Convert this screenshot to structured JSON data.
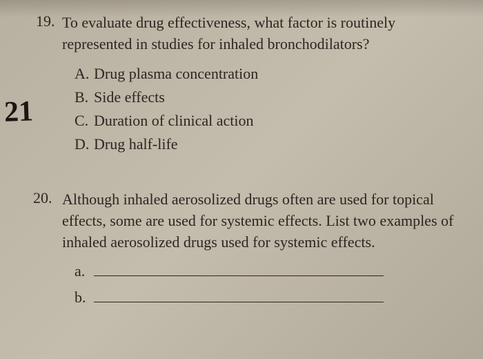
{
  "background_color": "#bcb4a4",
  "text_color": "#2a2622",
  "font_family": "Georgia, Times New Roman, serif",
  "base_fontsize": 22,
  "handwritten_annotation": {
    "text": "21",
    "color": "#1a1612",
    "fontsize": 42,
    "font_family": "Comic Sans MS, cursive"
  },
  "questions": [
    {
      "number": "19.",
      "text": "To evaluate drug effectiveness, what factor is routinely represented in studies for inhaled bronchodilators?",
      "options": [
        {
          "letter": "A.",
          "text": "Drug plasma concentration"
        },
        {
          "letter": "B.",
          "text": "Side effects"
        },
        {
          "letter": "C.",
          "text": "Duration of clinical action"
        },
        {
          "letter": "D.",
          "text": "Drug half-life"
        }
      ]
    },
    {
      "number": "20.",
      "text": "Although inhaled aerosolized drugs often are used for topical effects, some are used for systemic effects. List two examples of inhaled aerosolized drugs used for systemic effects.",
      "blanks": [
        {
          "letter": "a."
        },
        {
          "letter": "b."
        }
      ]
    }
  ]
}
